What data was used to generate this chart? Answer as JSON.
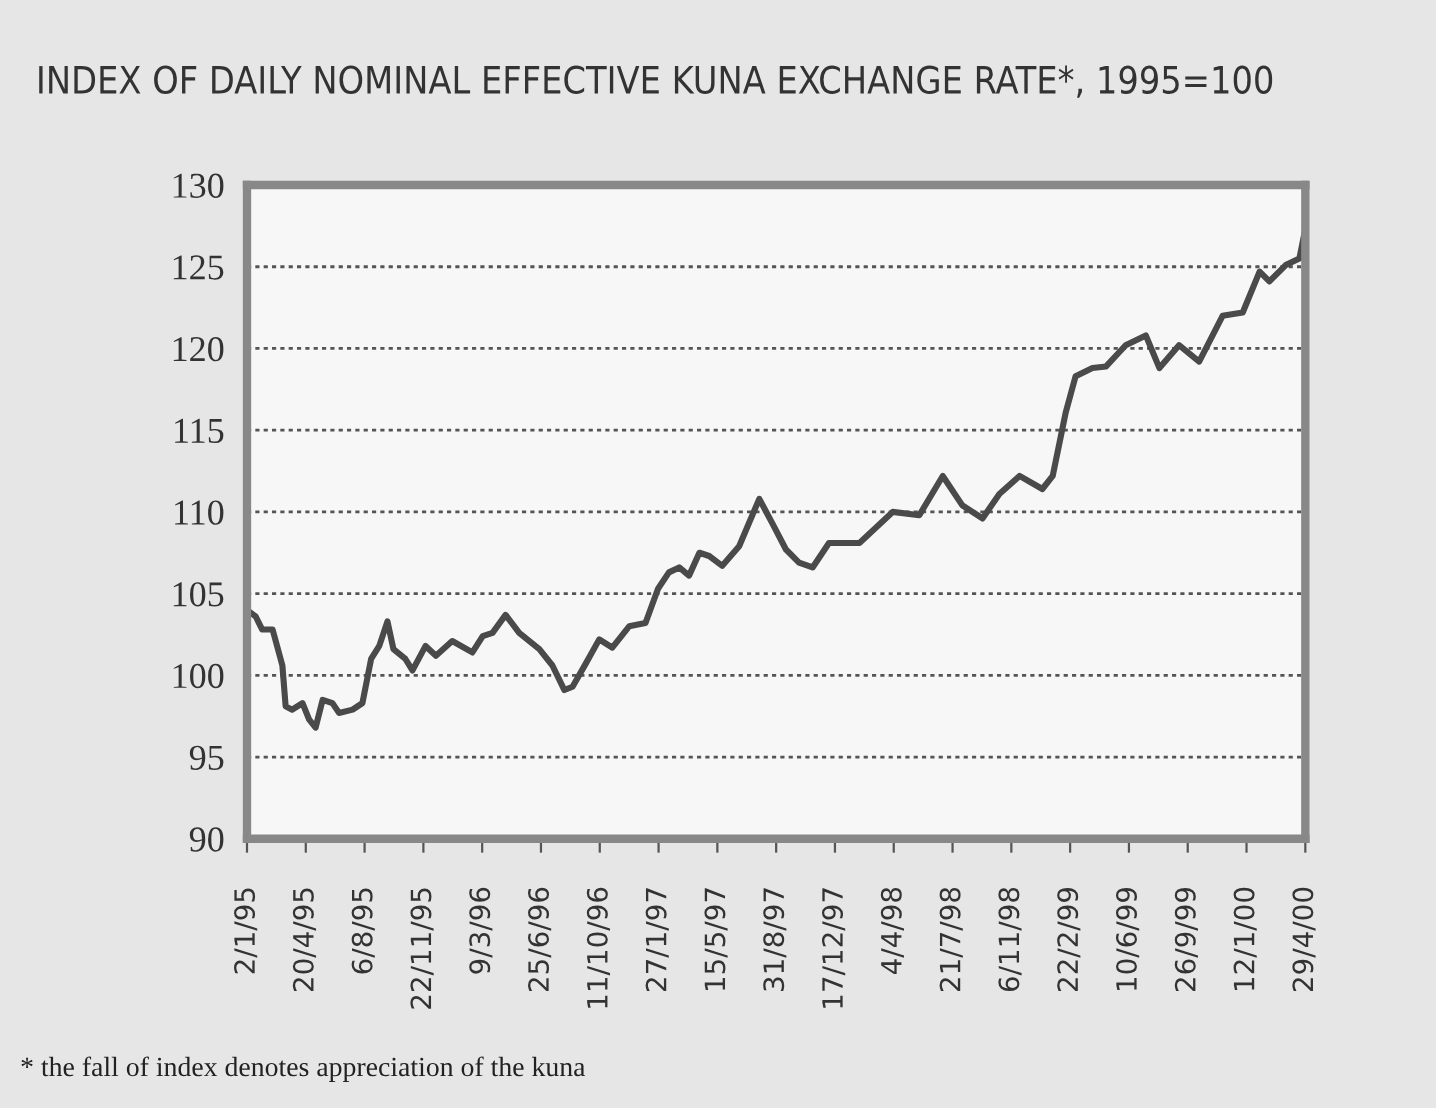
{
  "chart_data": {
    "type": "line",
    "title": "INDEX OF DAILY NOMINAL EFFECTIVE KUNA EXCHANGE RATE*, 1995=100",
    "annotations": [
      "* the fall of index denotes appreciation of the kuna"
    ],
    "series": [
      {
        "color": "#4a4a4a",
        "x": [
          "1995-01-02",
          "1995-01-18",
          "1995-01-30",
          "1995-02-18",
          "1995-03-08",
          "1995-03-14",
          "1995-03-26",
          "1995-04-14",
          "1995-04-26",
          "1995-05-08",
          "1995-05-21",
          "1995-06-08",
          "1995-06-20",
          "1995-07-15",
          "1995-08-02",
          "1995-08-18",
          "1995-09-02",
          "1995-09-17",
          "1995-09-28",
          "1995-10-20",
          "1995-11-02",
          "1995-11-26",
          "1995-12-15",
          "1996-01-14",
          "1996-02-20",
          "1996-03-10",
          "1996-03-28",
          "1996-04-21",
          "1996-05-16",
          "1996-06-22",
          "1996-07-16",
          "1996-08-07",
          "1996-08-22",
          "1996-09-15",
          "1996-10-10",
          "1996-11-03",
          "1996-12-04",
          "1997-01-03",
          "1997-01-26",
          "1997-02-15",
          "1997-03-06",
          "1997-03-24",
          "1997-04-12",
          "1997-04-30",
          "1997-05-24",
          "1997-06-24",
          "1997-07-31",
          "1997-08-24",
          "1997-09-18",
          "1997-10-12",
          "1997-11-06",
          "1997-12-06",
          "1998-01-31",
          "1998-04-02",
          "1998-05-21",
          "1998-07-03",
          "1998-08-08",
          "1998-09-14",
          "1998-10-15",
          "1998-11-21",
          "1999-01-02",
          "1999-01-21",
          "1999-02-14",
          "1999-03-04",
          "1999-04-04",
          "1999-04-29",
          "1999-06-04",
          "1999-07-11",
          "1999-08-05",
          "1999-09-10",
          "1999-10-17",
          "1999-11-29",
          "2000-01-05",
          "2000-02-05",
          "2000-02-23",
          "2000-03-24",
          "2000-04-18",
          "2000-04-29"
        ],
        "values": [
          104.0,
          103.6,
          102.8,
          102.8,
          100.6,
          98.1,
          97.9,
          98.3,
          97.3,
          96.8,
          98.5,
          98.3,
          97.7,
          97.9,
          98.3,
          101.0,
          101.8,
          103.3,
          101.6,
          101.0,
          100.3,
          101.8,
          101.2,
          102.1,
          101.4,
          102.4,
          102.6,
          103.7,
          102.6,
          101.6,
          100.6,
          99.1,
          99.3,
          100.7,
          102.2,
          101.7,
          103.0,
          103.2,
          105.3,
          106.3,
          106.6,
          106.1,
          107.5,
          107.3,
          106.7,
          107.9,
          110.8,
          109.3,
          107.7,
          106.9,
          106.6,
          108.1,
          108.1,
          110.0,
          109.8,
          112.2,
          110.4,
          109.6,
          111.1,
          112.2,
          111.4,
          112.2,
          116.1,
          118.3,
          118.8,
          118.9,
          120.2,
          120.8,
          118.8,
          120.2,
          119.2,
          122.0,
          122.2,
          124.7,
          124.1,
          125.1,
          125.5,
          127.3
        ]
      }
    ],
    "xlim": [
      "1995-01-02",
      "2000-04-29"
    ],
    "xticks": [
      {
        "value": "1995-01-02",
        "label": "2/1/95"
      },
      {
        "value": "1995-04-20",
        "label": "20/4/95"
      },
      {
        "value": "1995-08-06",
        "label": "6/8/95"
      },
      {
        "value": "1995-11-22",
        "label": "22/11/95"
      },
      {
        "value": "1996-03-09",
        "label": "9/3/96"
      },
      {
        "value": "1996-06-25",
        "label": "25/6/96"
      },
      {
        "value": "1996-10-11",
        "label": "11/10/96"
      },
      {
        "value": "1997-01-27",
        "label": "27/1/97"
      },
      {
        "value": "1997-05-15",
        "label": "15/5/97"
      },
      {
        "value": "1997-08-31",
        "label": "31/8/97"
      },
      {
        "value": "1997-12-17",
        "label": "17/12/97"
      },
      {
        "value": "1998-04-04",
        "label": "4/4/98"
      },
      {
        "value": "1998-07-21",
        "label": "21/7/98"
      },
      {
        "value": "1998-11-06",
        "label": "6/11/98"
      },
      {
        "value": "1999-02-22",
        "label": "22/2/99"
      },
      {
        "value": "1999-06-10",
        "label": "10/6/99"
      },
      {
        "value": "1999-09-26",
        "label": "26/9/99"
      },
      {
        "value": "2000-01-12",
        "label": "12/1/00"
      },
      {
        "value": "2000-04-29",
        "label": "29/4/00"
      }
    ],
    "ylim": [
      90,
      130
    ],
    "yticks": [
      90,
      95,
      100,
      105,
      110,
      115,
      120,
      125,
      130
    ],
    "grid": "y",
    "line_style": "solid",
    "marker": "none"
  }
}
